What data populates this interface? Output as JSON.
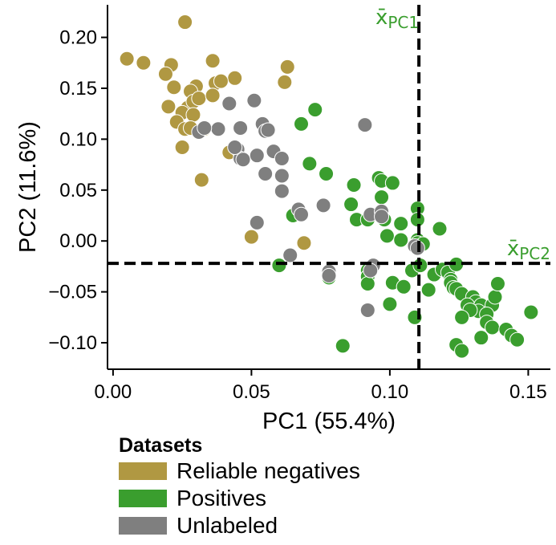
{
  "chart_data": {
    "type": "scatter",
    "xlabel": "PC1 (55.4%)",
    "ylabel": "PC2 (11.6%)",
    "xlim": [
      -0.002,
      0.158
    ],
    "ylim": [
      -0.126,
      0.232
    ],
    "xticks": [
      0.0,
      0.05,
      0.1,
      0.15
    ],
    "xtick_labels": [
      "0.00",
      "0.05",
      "0.10",
      "0.15"
    ],
    "yticks": [
      -0.1,
      -0.05,
      0.0,
      0.05,
      0.1,
      0.15,
      0.2
    ],
    "ytick_labels": [
      "−0.10",
      "−0.05",
      "0.00",
      "0.05",
      "0.10",
      "0.15",
      "0.20"
    ],
    "grid": false,
    "mean_lines": {
      "x": {
        "value": 0.1105,
        "label": "x̄",
        "subscript": "PC1"
      },
      "y": {
        "value": -0.022,
        "label": "x̄",
        "subscript": "PC2"
      },
      "label_color": "#3a9e2e"
    },
    "legend": {
      "title": "Datasets",
      "placement": "bottom-left, below axes",
      "entries": [
        {
          "label": "Reliable negatives",
          "color": "#b09842"
        },
        {
          "label": "Positives",
          "color": "#3a9e2e"
        },
        {
          "label": "Unlabeled",
          "color": "#7f7f7f"
        }
      ]
    },
    "series": [
      {
        "name": "Reliable negatives",
        "color": "#b09842",
        "points": [
          [
            0.026,
            0.215
          ],
          [
            0.005,
            0.179
          ],
          [
            0.011,
            0.175
          ],
          [
            0.021,
            0.173
          ],
          [
            0.019,
            0.164
          ],
          [
            0.036,
            0.177
          ],
          [
            0.022,
            0.151
          ],
          [
            0.03,
            0.152
          ],
          [
            0.028,
            0.147
          ],
          [
            0.044,
            0.16
          ],
          [
            0.037,
            0.155
          ],
          [
            0.039,
            0.157
          ],
          [
            0.02,
            0.132
          ],
          [
            0.027,
            0.131
          ],
          [
            0.029,
            0.137
          ],
          [
            0.031,
            0.14
          ],
          [
            0.025,
            0.126
          ],
          [
            0.036,
            0.143
          ],
          [
            0.023,
            0.117
          ],
          [
            0.029,
            0.124
          ],
          [
            0.026,
            0.11
          ],
          [
            0.028,
            0.111
          ],
          [
            0.033,
            0.11
          ],
          [
            0.025,
            0.092
          ],
          [
            0.042,
            0.087
          ],
          [
            0.032,
            0.06
          ],
          [
            0.063,
            0.171
          ],
          [
            0.062,
            0.156
          ],
          [
            0.05,
            0.004
          ],
          [
            0.069,
            -0.002
          ],
          [
            0.092,
            0.022
          ]
        ]
      },
      {
        "name": "Positives",
        "color": "#3a9e2e",
        "points": [
          [
            0.073,
            0.129
          ],
          [
            0.068,
            0.115
          ],
          [
            0.071,
            0.076
          ],
          [
            0.077,
            0.066
          ],
          [
            0.096,
            0.062
          ],
          [
            0.097,
            0.059
          ],
          [
            0.101,
            0.057
          ],
          [
            0.087,
            0.055
          ],
          [
            0.097,
            0.043
          ],
          [
            0.086,
            0.036
          ],
          [
            0.065,
            0.025
          ],
          [
            0.088,
            0.021
          ],
          [
            0.092,
            0.021
          ],
          [
            0.098,
            0.021
          ],
          [
            0.11,
            0.032
          ],
          [
            0.11,
            0.021
          ],
          [
            0.104,
            0.017
          ],
          [
            0.099,
            0.005
          ],
          [
            0.104,
            0.001
          ],
          [
            0.11,
            0.001
          ],
          [
            0.11,
            -0.002
          ],
          [
            0.112,
            -0.003
          ],
          [
            0.118,
            0.012
          ],
          [
            0.06,
            -0.024
          ],
          [
            0.092,
            -0.029
          ],
          [
            0.108,
            -0.029
          ],
          [
            0.116,
            -0.033
          ],
          [
            0.111,
            -0.024
          ],
          [
            0.119,
            -0.028
          ],
          [
            0.121,
            -0.031
          ],
          [
            0.124,
            -0.023
          ],
          [
            0.122,
            -0.038
          ],
          [
            0.114,
            -0.048
          ],
          [
            0.122,
            -0.041
          ],
          [
            0.123,
            -0.046
          ],
          [
            0.124,
            -0.047
          ],
          [
            0.126,
            -0.052
          ],
          [
            0.13,
            -0.055
          ],
          [
            0.131,
            -0.06
          ],
          [
            0.128,
            -0.063
          ],
          [
            0.133,
            -0.063
          ],
          [
            0.137,
            -0.063
          ],
          [
            0.132,
            -0.069
          ],
          [
            0.135,
            -0.072
          ],
          [
            0.129,
            -0.068
          ],
          [
            0.138,
            -0.055
          ],
          [
            0.139,
            -0.042
          ],
          [
            0.126,
            -0.075
          ],
          [
            0.135,
            -0.08
          ],
          [
            0.137,
            -0.085
          ],
          [
            0.151,
            -0.07
          ],
          [
            0.092,
            -0.035
          ],
          [
            0.101,
            -0.041
          ],
          [
            0.105,
            -0.045
          ],
          [
            0.092,
            -0.042
          ],
          [
            0.078,
            -0.036
          ],
          [
            0.1,
            -0.062
          ],
          [
            0.109,
            -0.075
          ],
          [
            0.142,
            -0.087
          ],
          [
            0.144,
            -0.093
          ],
          [
            0.146,
            -0.097
          ],
          [
            0.133,
            -0.095
          ],
          [
            0.124,
            -0.102
          ],
          [
            0.126,
            -0.108
          ],
          [
            0.083,
            -0.103
          ]
        ]
      },
      {
        "name": "Unlabeled",
        "color": "#7f7f7f",
        "points": [
          [
            0.042,
            0.135
          ],
          [
            0.051,
            0.138
          ],
          [
            0.091,
            0.114
          ],
          [
            0.031,
            0.107
          ],
          [
            0.038,
            0.11
          ],
          [
            0.033,
            0.111
          ],
          [
            0.046,
            0.111
          ],
          [
            0.054,
            0.115
          ],
          [
            0.055,
            0.108
          ],
          [
            0.056,
            0.109
          ],
          [
            0.045,
            0.09
          ],
          [
            0.046,
            0.081
          ],
          [
            0.044,
            0.092
          ],
          [
            0.047,
            0.08
          ],
          [
            0.052,
            0.084
          ],
          [
            0.058,
            0.088
          ],
          [
            0.061,
            0.081
          ],
          [
            0.055,
            0.066
          ],
          [
            0.061,
            0.064
          ],
          [
            0.061,
            0.049
          ],
          [
            0.067,
            0.031
          ],
          [
            0.068,
            0.026
          ],
          [
            0.076,
            0.035
          ],
          [
            0.093,
            0.026
          ],
          [
            0.052,
            0.018
          ],
          [
            0.097,
            0.029
          ],
          [
            0.097,
            0.024
          ],
          [
            0.064,
            -0.014
          ],
          [
            0.094,
            -0.024
          ],
          [
            0.093,
            -0.029
          ],
          [
            0.078,
            -0.03
          ],
          [
            0.078,
            -0.034
          ],
          [
            0.092,
            -0.068
          ],
          [
            0.109,
            -0.005
          ],
          [
            0.11,
            -0.007
          ]
        ]
      }
    ]
  }
}
